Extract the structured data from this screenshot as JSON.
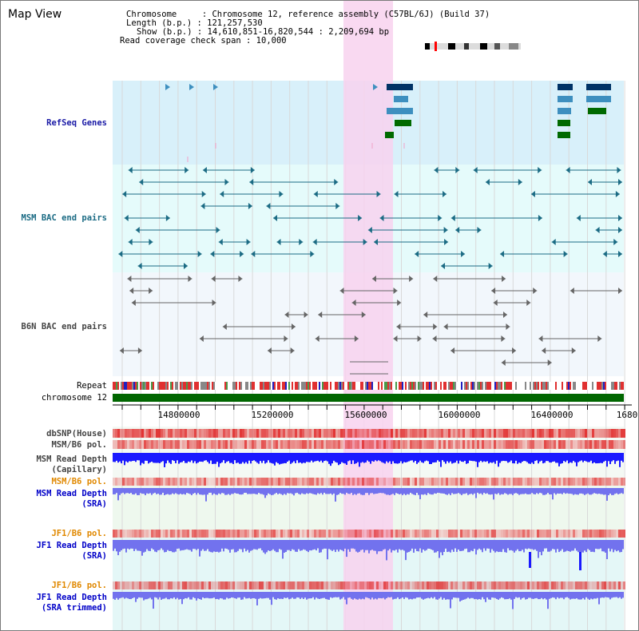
{
  "title": "Map View",
  "info": {
    "chromosome": "Chromosome     : Chromosome 12, reference assembly (C57BL/6J) (Build 37)",
    "length": "Length (b.p.) : 121,257,530",
    "show": "Show (b.p.) : 14,610,851-16,820,544 : 2,209,694 bp",
    "coverage": "Read coverage check span : 10,000"
  },
  "tracks": {
    "refseq": "RefSeq Genes",
    "msm_bac": "MSM BAC end pairs",
    "b6n_bac": "B6N BAC end pairs",
    "repeat": "Repeat",
    "chrom": "chromosome 12",
    "dbsnp": "dbSNP(House)",
    "msm_b6_pol_1": "MSM/B6 pol.",
    "msm_depth_cap_1": "MSM Read Depth",
    "msm_depth_cap_2": "(Capillary)",
    "msm_b6_pol_2": "MSM/B6 pol.",
    "msm_depth_sra_1": "MSM Read Depth",
    "msm_depth_sra_2": "(SRA)",
    "jf1_b6_pol_1": "JF1/B6 pol.",
    "jf1_depth_sra_1": "JF1 Read Depth",
    "jf1_depth_sra_2": "(SRA)",
    "jf1_b6_pol_2": "JF1/B6 pol.",
    "jf1_depth_trim_1": "JF1 Read Depth",
    "jf1_depth_trim_2": "(SRA trimmed)"
  },
  "axis": {
    "ticks": [
      "14800000",
      "15200000",
      "15600000",
      "16000000",
      "16400000",
      "1680"
    ]
  },
  "colors": {
    "highlight": "#f8d2ef",
    "refseq_bg": "#d8f0fa",
    "msm_bg": "#e5fbfb",
    "b6n_bg": "#f2f7fc",
    "chrom_bar": "#006600",
    "gene_dark": "#003366",
    "gene_mid": "#3e8fbf",
    "gene_green": "#006a00",
    "bac_teal": "#1b6b84",
    "bac_gray": "#666666",
    "snp_red": "#e02020",
    "depth_blue": "#1a1aff",
    "depth_light": "#7272ee"
  }
}
